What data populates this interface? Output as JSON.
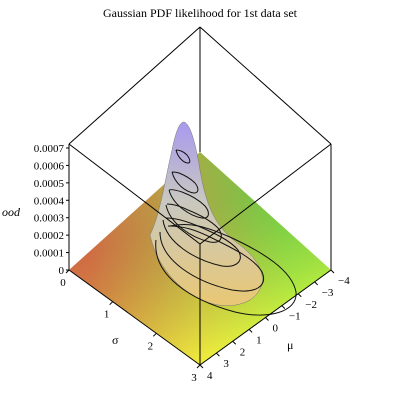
{
  "chart_data": {
    "type": "surface3d",
    "title": "Gaussian PDF likelihood for 1st data set",
    "zlabel": "ood",
    "xlabel": "σ",
    "ylabel": "μ",
    "sigma_range": [
      0,
      3
    ],
    "mu_range": [
      -4,
      4
    ],
    "z_range": [
      0,
      0.00075
    ],
    "z_ticks": [
      "0",
      "0.0001",
      "0.0002",
      "0.0003",
      "0.0004",
      "0.0005",
      "0.0006",
      "0.0007"
    ],
    "sigma_ticks": [
      "0",
      "1",
      "2",
      "3"
    ],
    "mu_ticks": [
      "−4",
      "−3",
      "−2",
      "−1",
      "0",
      "1",
      "2",
      "3",
      "4"
    ],
    "peak": {
      "sigma": 0.7,
      "mu": 0.2,
      "z": 0.00074
    },
    "contour_levels": [
      0.0001,
      0.0002,
      0.0003,
      0.0004,
      0.0005,
      0.0006,
      0.0007
    ],
    "colors": {
      "floor_red": "#ff5a3c",
      "floor_yellow": "#f4ff3c",
      "floor_green": "#62f040",
      "peak": "#a898f0",
      "contour": "#111111",
      "box": "#000000"
    }
  }
}
